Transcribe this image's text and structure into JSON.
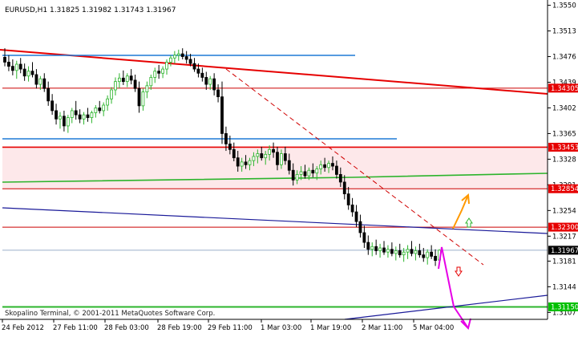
{
  "chart_data": {
    "type": "candlestick",
    "header": "EURUSD,H1  1.31825 1.31982 1.31743 1.31967",
    "symbol": "EURUSD",
    "timeframe": "H1",
    "last_bar": {
      "open": 1.31825,
      "high": 1.31982,
      "low": 1.31743,
      "close": 1.31967
    },
    "watermark": "Skopalino Terminal, © 2001-2011 MetaQuotes Software Corp.",
    "ylim": [
      1.3097,
      1.3553
    ],
    "y_ticks": [
      1.355,
      1.3513,
      1.3476,
      1.3439,
      1.3402,
      1.3365,
      1.3328,
      1.3291,
      1.3254,
      1.3217,
      1.3181,
      1.3144,
      1.3107
    ],
    "x_tick_labels": [
      "24 Feb 2012",
      "27 Feb 11:00",
      "28 Feb 03:00",
      "28 Feb 19:00",
      "29 Feb 11:00",
      "1 Mar 03:00",
      "1 Mar 19:00",
      "2 Mar 11:00",
      "5 Mar 04:00"
    ],
    "price_labels": [
      {
        "value": "1.34305",
        "kind": "level"
      },
      {
        "value": "1.33453",
        "kind": "level"
      },
      {
        "value": "1.32854",
        "kind": "level"
      },
      {
        "value": "1.32300",
        "kind": "level"
      },
      {
        "value": "1.31967",
        "kind": "current"
      },
      {
        "value": "1.31150",
        "kind": "support"
      }
    ],
    "horizontal_levels": [
      1.34305,
      1.33453,
      1.32854,
      1.323,
      1.3115
    ],
    "zone": {
      "from": 1.32854,
      "to": 1.33453
    },
    "bars": [
      [
        1.3475,
        1.3488,
        1.3462,
        1.3468
      ],
      [
        1.3468,
        1.3478,
        1.3455,
        1.3462
      ],
      [
        1.3462,
        1.3472,
        1.3449,
        1.3456
      ],
      [
        1.3456,
        1.347,
        1.3444,
        1.3465
      ],
      [
        1.3465,
        1.3474,
        1.3452,
        1.3458
      ],
      [
        1.3458,
        1.3466,
        1.3441,
        1.3448
      ],
      [
        1.3448,
        1.3462,
        1.344,
        1.3455
      ],
      [
        1.3455,
        1.3468,
        1.3446,
        1.345
      ],
      [
        1.345,
        1.3458,
        1.343,
        1.3436
      ],
      [
        1.3436,
        1.3448,
        1.3428,
        1.3444
      ],
      [
        1.3444,
        1.3452,
        1.3425,
        1.343
      ],
      [
        1.343,
        1.344,
        1.3405,
        1.3412
      ],
      [
        1.3412,
        1.3422,
        1.3392,
        1.3398
      ],
      [
        1.3398,
        1.3408,
        1.3378,
        1.3386
      ],
      [
        1.3386,
        1.3396,
        1.3372,
        1.339
      ],
      [
        1.339,
        1.3398,
        1.3368,
        1.3376
      ],
      [
        1.3376,
        1.3392,
        1.3366,
        1.3388
      ],
      [
        1.3388,
        1.3402,
        1.338,
        1.3398
      ],
      [
        1.3398,
        1.3412,
        1.3385,
        1.3392
      ],
      [
        1.3392,
        1.34,
        1.338,
        1.3386
      ],
      [
        1.3386,
        1.3396,
        1.3378,
        1.3392
      ],
      [
        1.3392,
        1.3402,
        1.3382,
        1.3388
      ],
      [
        1.3388,
        1.3398,
        1.338,
        1.3395
      ],
      [
        1.3395,
        1.3406,
        1.3388,
        1.3402
      ],
      [
        1.3402,
        1.3412,
        1.3394,
        1.3398
      ],
      [
        1.3398,
        1.341,
        1.339,
        1.3406
      ],
      [
        1.3406,
        1.342,
        1.3398,
        1.3415
      ],
      [
        1.3415,
        1.3432,
        1.3408,
        1.3428
      ],
      [
        1.3428,
        1.3446,
        1.342,
        1.344
      ],
      [
        1.344,
        1.3452,
        1.343,
        1.3445
      ],
      [
        1.3445,
        1.3456,
        1.3435,
        1.344
      ],
      [
        1.344,
        1.3452,
        1.3432,
        1.3448
      ],
      [
        1.3448,
        1.3458,
        1.3436,
        1.3442
      ],
      [
        1.3442,
        1.345,
        1.3425,
        1.343
      ],
      [
        1.343,
        1.344,
        1.3395,
        1.3405
      ],
      [
        1.3405,
        1.343,
        1.3398,
        1.3425
      ],
      [
        1.3425,
        1.344,
        1.3416,
        1.3434
      ],
      [
        1.3434,
        1.345,
        1.3428,
        1.3446
      ],
      [
        1.3446,
        1.346,
        1.3438,
        1.3455
      ],
      [
        1.3455,
        1.3464,
        1.3444,
        1.3452
      ],
      [
        1.3452,
        1.3462,
        1.3445,
        1.3458
      ],
      [
        1.3458,
        1.3472,
        1.345,
        1.3468
      ],
      [
        1.3468,
        1.3478,
        1.3462,
        1.3474
      ],
      [
        1.3474,
        1.3484,
        1.3466,
        1.3478
      ],
      [
        1.3478,
        1.3486,
        1.347,
        1.348
      ],
      [
        1.348,
        1.3488,
        1.3472,
        1.3476
      ],
      [
        1.3476,
        1.3484,
        1.3466,
        1.3472
      ],
      [
        1.3472,
        1.348,
        1.3462,
        1.3466
      ],
      [
        1.3466,
        1.3474,
        1.3454,
        1.3458
      ],
      [
        1.3458,
        1.3466,
        1.3446,
        1.3452
      ],
      [
        1.3452,
        1.346,
        1.344,
        1.3446
      ],
      [
        1.3446,
        1.3454,
        1.3428,
        1.3436
      ],
      [
        1.3436,
        1.3448,
        1.3428,
        1.3444
      ],
      [
        1.3444,
        1.3452,
        1.342,
        1.3428
      ],
      [
        1.3428,
        1.3436,
        1.341,
        1.3418
      ],
      [
        1.3418,
        1.344,
        1.335,
        1.3365
      ],
      [
        1.3365,
        1.3375,
        1.334,
        1.335
      ],
      [
        1.335,
        1.3362,
        1.3335,
        1.3342
      ],
      [
        1.3342,
        1.3352,
        1.3325,
        1.333
      ],
      [
        1.333,
        1.334,
        1.331,
        1.3318
      ],
      [
        1.3318,
        1.333,
        1.331,
        1.3324
      ],
      [
        1.3324,
        1.3334,
        1.3314,
        1.332
      ],
      [
        1.332,
        1.333,
        1.3312,
        1.3326
      ],
      [
        1.3326,
        1.3338,
        1.3318,
        1.3332
      ],
      [
        1.3332,
        1.3342,
        1.3322,
        1.3336
      ],
      [
        1.3336,
        1.3346,
        1.3326,
        1.333
      ],
      [
        1.333,
        1.334,
        1.332,
        1.3335
      ],
      [
        1.3335,
        1.3348,
        1.3326,
        1.3342
      ],
      [
        1.3342,
        1.3352,
        1.333,
        1.3338
      ],
      [
        1.3338,
        1.3346,
        1.3312,
        1.332
      ],
      [
        1.332,
        1.3342,
        1.3314,
        1.3336
      ],
      [
        1.3336,
        1.3346,
        1.332,
        1.3326
      ],
      [
        1.3326,
        1.3336,
        1.3306,
        1.3312
      ],
      [
        1.3312,
        1.3322,
        1.329,
        1.3298
      ],
      [
        1.3298,
        1.3312,
        1.3292,
        1.3306
      ],
      [
        1.3306,
        1.3318,
        1.3298,
        1.331
      ],
      [
        1.331,
        1.332,
        1.33,
        1.3304
      ],
      [
        1.3304,
        1.3316,
        1.3298,
        1.3312
      ],
      [
        1.3312,
        1.3322,
        1.3302,
        1.3308
      ],
      [
        1.3308,
        1.3318,
        1.3298,
        1.3314
      ],
      [
        1.3314,
        1.3326,
        1.3306,
        1.332
      ],
      [
        1.332,
        1.333,
        1.331,
        1.3316
      ],
      [
        1.3316,
        1.3326,
        1.3308,
        1.3322
      ],
      [
        1.3322,
        1.3332,
        1.3312,
        1.3318
      ],
      [
        1.3318,
        1.3326,
        1.33,
        1.3306
      ],
      [
        1.3306,
        1.3316,
        1.3288,
        1.3295
      ],
      [
        1.3295,
        1.3305,
        1.327,
        1.3278
      ],
      [
        1.3278,
        1.3288,
        1.3255,
        1.3262
      ],
      [
        1.3262,
        1.3272,
        1.3245,
        1.3252
      ],
      [
        1.3252,
        1.3262,
        1.323,
        1.3238
      ],
      [
        1.3238,
        1.3248,
        1.3215,
        1.3222
      ],
      [
        1.3222,
        1.3232,
        1.32,
        1.3208
      ],
      [
        1.3208,
        1.3218,
        1.319,
        1.3198
      ],
      [
        1.3198,
        1.3208,
        1.3188,
        1.3202
      ],
      [
        1.3202,
        1.3212,
        1.319,
        1.3196
      ],
      [
        1.3196,
        1.3206,
        1.3186,
        1.32
      ],
      [
        1.32,
        1.321,
        1.319,
        1.3194
      ],
      [
        1.3194,
        1.3204,
        1.3186,
        1.3198
      ],
      [
        1.3198,
        1.3208,
        1.3188,
        1.3192
      ],
      [
        1.3192,
        1.3202,
        1.3182,
        1.3196
      ],
      [
        1.3196,
        1.3206,
        1.3186,
        1.319
      ],
      [
        1.319,
        1.32,
        1.318,
        1.3194
      ],
      [
        1.3194,
        1.3204,
        1.3184,
        1.3198
      ],
      [
        1.3198,
        1.321,
        1.3188,
        1.3192
      ],
      [
        1.3192,
        1.3202,
        1.3182,
        1.3196
      ],
      [
        1.3196,
        1.3206,
        1.3186,
        1.319
      ],
      [
        1.319,
        1.32,
        1.318,
        1.3186
      ],
      [
        1.3186,
        1.3198,
        1.3176,
        1.3194
      ],
      [
        1.3194,
        1.3204,
        1.3184,
        1.3188
      ],
      [
        1.3188,
        1.3198,
        1.3174,
        1.3182
      ],
      [
        1.31825,
        1.31982,
        1.31743,
        1.31967
      ]
    ],
    "colors": {
      "background": "#ffffff",
      "up_candle": "#2cb42c",
      "down_candle": "#000000",
      "resistance": "#e60000",
      "thin_level": "#cc0000",
      "zone_fill": "#fde8ea",
      "channel_blue": "#1e7ad6",
      "trend_navy": "#1a1a99",
      "green_line": "#2cb42c",
      "current_line": "#7a96b8",
      "arrow_orange": "#ff9900",
      "arrow_magenta": "#e600e6",
      "label_red": "#e60000",
      "label_black": "#000000",
      "label_green": "#00c000"
    }
  }
}
